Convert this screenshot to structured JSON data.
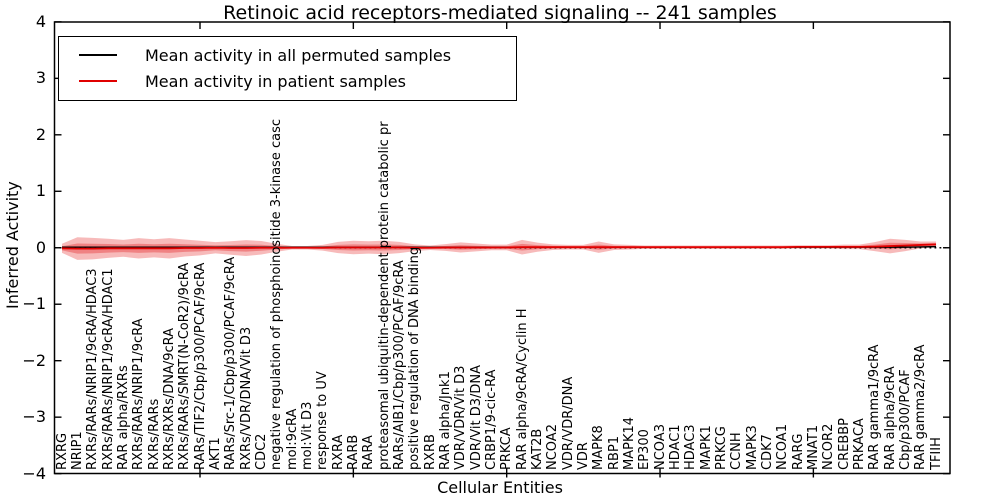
{
  "chart_data": {
    "type": "line",
    "title": "Retinoic acid receptors-mediated signaling -- 241 samples",
    "xlabel": "Cellular Entities",
    "ylabel": "Inferred Activity",
    "ylim": [
      -4,
      4
    ],
    "grid": false,
    "legend_position": "upper left",
    "y_ticks": [
      {
        "label": "4",
        "value": 4
      },
      {
        "label": "3",
        "value": 3
      },
      {
        "label": "2",
        "value": 2
      },
      {
        "label": "1",
        "value": 1
      },
      {
        "label": "0",
        "value": 0
      },
      {
        "label": "−1",
        "value": -1
      },
      {
        "label": "−2",
        "value": -2
      },
      {
        "label": "−3",
        "value": -3
      },
      {
        "label": "−4",
        "value": -4
      }
    ],
    "x_major_ticks": [
      10,
      20,
      30,
      40,
      50
    ],
    "zero_line": {
      "style": "dotted",
      "value": 0,
      "color": "#000000"
    },
    "band_color": "#e31a1c",
    "band_outer_opacity": 0.3,
    "band_inner_opacity": 0.35,
    "band_inner_ratio": 0.45,
    "categories": [
      "RXRG",
      "NRIP1",
      "RXRs/RARs/NRIP1/9cRA/HDAC3",
      "RXRs/RARs/NRIP1/9cRA/HDAC1",
      "RAR alpha/RXRs",
      "RXRs/RARs/NRIP1/9cRA",
      "RXRs/RARs",
      "RXRs/RXRs/DNA/9cRA",
      "RXRs/RARs/SMRT(N-CoR2)/9cRA",
      "RARs/TIF2/Cbp/p300/PCAF/9cRA",
      "AKT1",
      "RARs/Src-1/Cbp/p300/PCAF/9cRA",
      "RXRs/VDR/DNA/Vit D3",
      "CDC2",
      "negative regulation of phosphoinositide 3-kinase casc",
      "mol:9cRA",
      "mol:Vit D3",
      "response to UV",
      "RXRA",
      "RARB",
      "RARA",
      "proteasomal ubiquitin-dependent protein catabolic pr",
      "RARs/AIB1/Cbp/p300/PCAF/9cRA",
      "positive regulation of DNA binding",
      "RXRB",
      "RAR alpha/Jnk1",
      "VDR/VDR/Vit D3",
      "VDR/Vit D3/DNA",
      "CRBP1/9-cic-RA",
      "PRKCA",
      "RAR alpha/9cRA/Cyclin H",
      "KAT2B",
      "NCOA2",
      "VDR/VDR/DNA",
      "VDR",
      "MAPK8",
      "RBP1",
      "MAPK14",
      "EP300",
      "NCOA3",
      "HDAC1",
      "HDAC3",
      "MAPK1",
      "PRKCG",
      "CCNH",
      "MAPK3",
      "CDK7",
      "NCOA1",
      "RARG",
      "MNAT1",
      "NCOR2",
      "CREBBP",
      "PRKACA",
      "RAR gamma1/9cRA",
      "RAR alpha/9cRA",
      "Cbp/p300/PCAF",
      "RAR gamma2/9cRA",
      "TFIIH"
    ],
    "series": [
      {
        "name": "Mean activity in all permuted samples",
        "color": "#000000",
        "values": [
          0.01,
          0.01,
          0.01,
          0.01,
          0.01,
          0.01,
          0.01,
          0.01,
          0.01,
          0.01,
          0.01,
          0.01,
          0.01,
          0.01,
          0.01,
          0.01,
          0.01,
          0.01,
          0.01,
          0.01,
          0.01,
          0.01,
          0.01,
          0.01,
          0.01,
          0.01,
          0.01,
          0.01,
          0.01,
          0.01,
          0.01,
          0.01,
          0.01,
          0.01,
          0.01,
          0.01,
          0.01,
          0.01,
          0.01,
          0.01,
          0.01,
          0.01,
          0.01,
          0.01,
          0.01,
          0.01,
          0.01,
          0.01,
          0.01,
          0.01,
          0.01,
          0.01,
          0.01,
          0.01,
          0.01,
          0.01,
          0.015,
          0.02
        ]
      },
      {
        "name": "Mean activity in patient samples",
        "color": "#e00000",
        "values": [
          -0.01,
          -0.015,
          -0.015,
          -0.01,
          -0.01,
          -0.01,
          -0.01,
          -0.01,
          -0.005,
          -0.005,
          0.0,
          -0.005,
          -0.005,
          0.0,
          0.0,
          0.0,
          0.0,
          0.0,
          0.005,
          0.005,
          0.005,
          0.005,
          0.005,
          0.0,
          0.0,
          0.005,
          0.005,
          0.005,
          0.005,
          0.005,
          0.01,
          0.01,
          0.01,
          0.01,
          0.01,
          0.01,
          0.01,
          0.01,
          0.01,
          0.01,
          0.01,
          0.01,
          0.01,
          0.01,
          0.01,
          0.01,
          0.01,
          0.01,
          0.015,
          0.015,
          0.015,
          0.015,
          0.015,
          0.02,
          0.03,
          0.04,
          0.05,
          0.06
        ]
      }
    ],
    "band_outer": [
      0.08,
      0.2,
      0.19,
      0.17,
      0.15,
      0.18,
      0.16,
      0.18,
      0.15,
      0.13,
      0.1,
      0.12,
      0.14,
      0.12,
      0.07,
      0.03,
      0.03,
      0.05,
      0.1,
      0.12,
      0.11,
      0.12,
      0.1,
      0.06,
      0.04,
      0.06,
      0.09,
      0.07,
      0.05,
      0.05,
      0.13,
      0.08,
      0.05,
      0.04,
      0.04,
      0.1,
      0.05,
      0.04,
      0.03,
      0.03,
      0.03,
      0.03,
      0.03,
      0.03,
      0.03,
      0.03,
      0.03,
      0.03,
      0.03,
      0.03,
      0.03,
      0.04,
      0.04,
      0.08,
      0.13,
      0.1,
      0.06,
      0.05
    ]
  }
}
